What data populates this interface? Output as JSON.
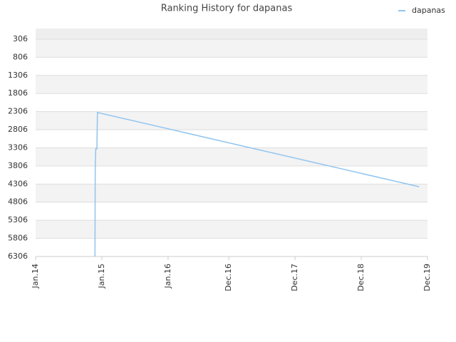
{
  "chart_data": {
    "type": "line",
    "title": "Ranking History for dapanas",
    "x": [
      10.75,
      10.8,
      10.9,
      11.1,
      11.2,
      69.5
    ],
    "series": [
      {
        "name": "dapanas",
        "color": "#90c4f0",
        "values": [
          6306,
          3800,
          3330,
          3330,
          2330,
          4380
        ]
      }
    ],
    "xlim": [
      0,
      71
    ],
    "xticks": [
      {
        "value": 0,
        "label": "Jan.14"
      },
      {
        "value": 12,
        "label": "Jan.15"
      },
      {
        "value": 24,
        "label": "Jan.16"
      },
      {
        "value": 35,
        "label": "Dec.16"
      },
      {
        "value": 47,
        "label": "Dec.17"
      },
      {
        "value": 59,
        "label": "Dec.18"
      },
      {
        "value": 71,
        "label": "Dec.19"
      }
    ],
    "ylim": [
      6306,
      11
    ],
    "yticks": [
      306,
      806,
      1306,
      1806,
      2306,
      2806,
      3306,
      3806,
      4306,
      4806,
      5306,
      5806,
      6306
    ],
    "grid": true,
    "legend": "top-right"
  }
}
